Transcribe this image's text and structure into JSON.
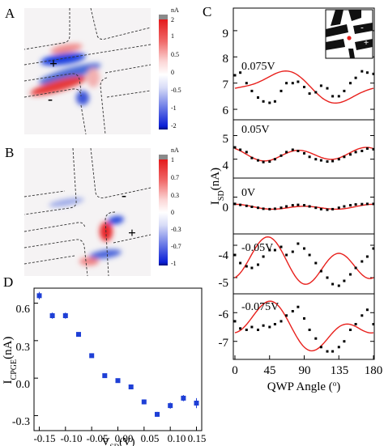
{
  "chart_data": [
    {
      "panel": "A",
      "type": "heatmap",
      "colorbar": {
        "unit": "nA",
        "ticks": [
          "2",
          "1",
          "0.5",
          "0",
          "-0.5",
          "-1",
          "-2"
        ],
        "colors": {
          "high": "#e41a1c",
          "zero": "#ffffff",
          "low": "#0b1fd6",
          "cap": "#8a8a8a"
        }
      },
      "annotations": [
        "+",
        "-"
      ],
      "lobes": [
        {
          "sign": "negative",
          "strength": 1.0
        },
        {
          "sign": "negative",
          "strength": 0.9
        },
        {
          "sign": "positive",
          "strength": 0.6
        },
        {
          "sign": "positive",
          "strength": 0.5
        },
        {
          "sign": "negative",
          "strength": 0.7
        },
        {
          "sign": "positive",
          "strength": 0.3
        }
      ]
    },
    {
      "panel": "B",
      "type": "heatmap",
      "colorbar": {
        "unit": "nA",
        "ticks": [
          "1",
          "0.7",
          "0.3",
          "0",
          "-0.3",
          "-0.7",
          "-1"
        ],
        "colors": {
          "high": "#e41a1c",
          "zero": "#ffffff",
          "low": "#0b1fd6",
          "cap": "#8a8a8a"
        }
      },
      "annotations": [
        "-",
        "+"
      ],
      "lobes": [
        {
          "sign": "positive",
          "strength": 1.0
        },
        {
          "sign": "negative",
          "strength": 0.8
        },
        {
          "sign": "negative",
          "strength": 0.5
        },
        {
          "sign": "positive",
          "strength": 0.4
        },
        {
          "sign": "negative",
          "strength": 0.3
        }
      ]
    },
    {
      "panel": "C",
      "type": "scatter",
      "xlabel": "QWP Angle (°)",
      "ylabel": "I_SD(nA)",
      "xlim": [
        0,
        180
      ],
      "xticks": [
        0,
        45,
        90,
        135,
        180
      ],
      "ylim": [
        -7.6,
        10
      ],
      "yticks": [
        -7,
        -6,
        -5,
        -4,
        0,
        4,
        5,
        6,
        7,
        8,
        9
      ],
      "marker_color": "#000000",
      "fit_color": "#e8201c",
      "inset": {
        "labels": [
          "-",
          "+"
        ],
        "spot_color": "#e8201c"
      },
      "series": [
        {
          "name": "0.075V",
          "fit": {
            "offset": 6.85,
            "sin2": 0.5,
            "cos2": -0.15,
            "sin4": -0.15,
            "cos4": 0.1
          },
          "x": [
            0,
            7,
            15,
            22,
            30,
            37,
            45,
            52,
            60,
            67,
            75,
            82,
            90,
            97,
            105,
            112,
            120,
            127,
            135,
            142,
            150,
            157,
            165,
            172,
            180
          ],
          "y": [
            7.3,
            7.4,
            7.0,
            6.7,
            6.45,
            6.3,
            6.25,
            6.3,
            6.7,
            7.0,
            7.0,
            7.05,
            6.85,
            6.6,
            6.65,
            6.9,
            6.8,
            6.5,
            6.5,
            6.7,
            7.0,
            7.2,
            7.45,
            7.4,
            7.35
          ]
        },
        {
          "name": "0.05V",
          "fit": {
            "offset": 4.2,
            "sin2": -0.05,
            "cos2": 0.05,
            "sin4": -0.13,
            "cos4": 0.2
          },
          "x": [
            0,
            7,
            15,
            22,
            30,
            37,
            45,
            52,
            60,
            67,
            75,
            82,
            90,
            97,
            105,
            112,
            120,
            127,
            135,
            142,
            150,
            157,
            165,
            172,
            180
          ],
          "y": [
            4.5,
            4.4,
            4.3,
            4.05,
            3.95,
            3.88,
            3.9,
            4.0,
            4.15,
            4.3,
            4.4,
            4.35,
            4.25,
            4.1,
            4.0,
            3.95,
            3.9,
            3.92,
            4.0,
            4.1,
            4.2,
            4.3,
            4.35,
            4.45,
            4.42
          ]
        },
        {
          "name": "0V",
          "fit": {
            "offset": -0.52,
            "sin2": 0,
            "cos2": 0.05,
            "sin4": 0,
            "cos4": 0.1
          },
          "x": [
            0,
            7,
            15,
            22,
            30,
            37,
            45,
            52,
            60,
            67,
            75,
            82,
            90,
            97,
            105,
            112,
            120,
            127,
            135,
            142,
            150,
            157,
            165,
            172,
            180
          ],
          "y": [
            -0.35,
            -0.4,
            -0.45,
            -0.5,
            -0.55,
            -0.6,
            -0.62,
            -0.6,
            -0.55,
            -0.48,
            -0.42,
            -0.4,
            -0.42,
            -0.48,
            -0.55,
            -0.62,
            -0.65,
            -0.62,
            -0.55,
            -0.48,
            -0.42,
            -0.38,
            -0.36,
            -0.35,
            -0.35
          ]
        },
        {
          "name": "-0.05V",
          "fit": {
            "offset": -4.55,
            "sin2": 0.25,
            "cos2": 0.1,
            "sin4": 0.05,
            "cos4": -0.55
          },
          "x": [
            0,
            7,
            15,
            22,
            30,
            37,
            45,
            52,
            60,
            67,
            75,
            82,
            90,
            97,
            105,
            112,
            120,
            127,
            135,
            142,
            150,
            157,
            165,
            172,
            180
          ],
          "y": [
            -4.3,
            -4.55,
            -4.65,
            -4.7,
            -4.6,
            -4.35,
            -4.15,
            -4.15,
            -4.05,
            -4.3,
            -4.2,
            -3.95,
            -4.1,
            -4.3,
            -4.55,
            -4.8,
            -5.0,
            -5.2,
            -5.25,
            -5.1,
            -4.9,
            -4.7,
            -4.5,
            -4.35,
            -4.1
          ]
        },
        {
          "name": "-0.075V",
          "fit": {
            "offset": -6.5,
            "sin2": 0.45,
            "cos2": 0.25,
            "sin4": -0.15,
            "cos4": -0.45
          },
          "x": [
            0,
            7,
            15,
            22,
            30,
            37,
            45,
            52,
            60,
            67,
            75,
            82,
            90,
            97,
            105,
            112,
            120,
            127,
            135,
            142,
            150,
            157,
            165,
            172,
            180
          ],
          "y": [
            -6.3,
            -6.55,
            -6.6,
            -6.5,
            -6.6,
            -6.45,
            -6.5,
            -6.4,
            -6.3,
            -6.1,
            -5.95,
            -5.8,
            -6.2,
            -6.6,
            -6.9,
            -7.2,
            -7.35,
            -7.35,
            -7.2,
            -7.0,
            -6.6,
            -6.4,
            -6.1,
            -5.9,
            -6.4
          ]
        }
      ]
    },
    {
      "panel": "D",
      "type": "scatter",
      "xlabel": "V_SD(V)",
      "ylabel": "I_CPGE(nA)",
      "xlim": [
        -0.16,
        0.16
      ],
      "xticks": [
        "-0.15",
        "-0.10",
        "-0.05",
        "0.00",
        "0.05",
        "0.10",
        "0.15"
      ],
      "ylim": [
        -0.42,
        0.72
      ],
      "yticks": [
        "0.6",
        "0.3",
        "0.0",
        "-0.3"
      ],
      "marker_color": "#1e3fd6",
      "x": [
        -0.15,
        -0.125,
        -0.1,
        -0.075,
        -0.05,
        -0.025,
        0.0,
        0.025,
        0.05,
        0.075,
        0.1,
        0.125,
        0.15
      ],
      "y": [
        0.66,
        0.5,
        0.5,
        0.35,
        0.18,
        0.02,
        -0.02,
        -0.07,
        -0.19,
        -0.29,
        -0.22,
        -0.16,
        -0.2
      ],
      "err": [
        0.03,
        0.025,
        0.025,
        0.015,
        0.015,
        0.015,
        0.015,
        0.015,
        0.02,
        0.02,
        0.025,
        0.025,
        0.04
      ]
    }
  ],
  "labels": {
    "a": "A",
    "b": "B",
    "c": "C",
    "d": "D"
  },
  "panel_a": {
    "plus": "+",
    "minus": "-",
    "unit": "nA",
    "ticks": [
      "2",
      "1",
      "0.5",
      "0",
      "-0.5",
      "-1",
      "-2"
    ]
  },
  "panel_b": {
    "plus": "+",
    "minus": "-",
    "unit": "nA",
    "ticks": [
      "1",
      "0.7",
      "0.3",
      "0",
      "-0.3",
      "-0.7",
      "-1"
    ]
  },
  "panel_c": {
    "xticks": [
      "0",
      "45",
      "90",
      "135",
      "180"
    ],
    "xlabel": "QWP Angle (",
    "xlabel_deg": "o",
    "xlabel_end": ")",
    "ylabel_main": "I",
    "ylabel_sub": "SD",
    "ylabel_unit": "(nA)",
    "yticks": [
      "9",
      "8",
      "7",
      "6",
      "5",
      "4",
      "0",
      "-4",
      "-5",
      "-6",
      "-7"
    ],
    "series_labels": [
      "0.075V",
      "0.05V",
      "0V",
      "-0.05V",
      "-0.075V"
    ],
    "inset_minus": "-",
    "inset_plus": "+"
  },
  "panel_d": {
    "xticks": [
      "-0.15",
      "-0.10",
      "-0.05",
      "0.00",
      "0.05",
      "0.10",
      "0.15"
    ],
    "yticks": [
      "0.6",
      "0.3",
      "0.0",
      "-0.3"
    ],
    "xlabel_main": "V",
    "xlabel_sub": "SD",
    "xlabel_unit": "(V)",
    "ylabel_main": "I",
    "ylabel_sub": "CPGE",
    "ylabel_unit": "(nA)"
  }
}
